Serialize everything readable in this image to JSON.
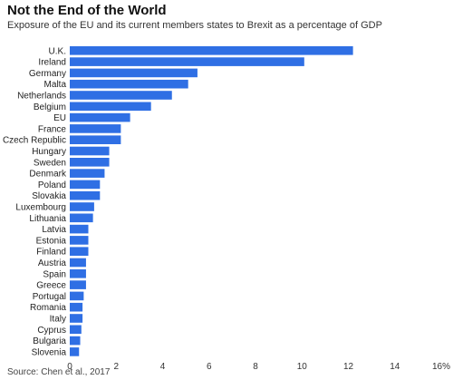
{
  "chart_data": {
    "type": "bar",
    "orientation": "horizontal",
    "title": "Not the End of the World",
    "subtitle": "Exposure of the EU and its current members states to Brexit as a percentage of GDP",
    "source": "Source: Chen et al., 2017",
    "categories": [
      "U.K.",
      "Ireland",
      "Germany",
      "Malta",
      "Netherlands",
      "Belgium",
      "EU",
      "France",
      "Czech Republic",
      "Hungary",
      "Sweden",
      "Denmark",
      "Poland",
      "Slovakia",
      "Luxembourg",
      "Lithuania",
      "Latvia",
      "Estonia",
      "Finland",
      "Austria",
      "Spain",
      "Greece",
      "Portugal",
      "Romania",
      "Italy",
      "Cyprus",
      "Bulgaria",
      "Slovenia"
    ],
    "values": [
      12.2,
      10.1,
      5.5,
      5.1,
      4.4,
      3.5,
      2.6,
      2.2,
      2.2,
      1.7,
      1.7,
      1.5,
      1.3,
      1.3,
      1.05,
      1.0,
      0.8,
      0.8,
      0.8,
      0.7,
      0.7,
      0.7,
      0.6,
      0.55,
      0.55,
      0.5,
      0.45,
      0.4
    ],
    "xticks": [
      0,
      2,
      4,
      6,
      8,
      10,
      12,
      14,
      16
    ],
    "xtick_labels": [
      "0",
      "2",
      "4",
      "6",
      "8",
      "10",
      "12",
      "14",
      "16%"
    ],
    "xlim": [
      0,
      16
    ],
    "grid": false,
    "bar_color": "#2f6fe4"
  }
}
